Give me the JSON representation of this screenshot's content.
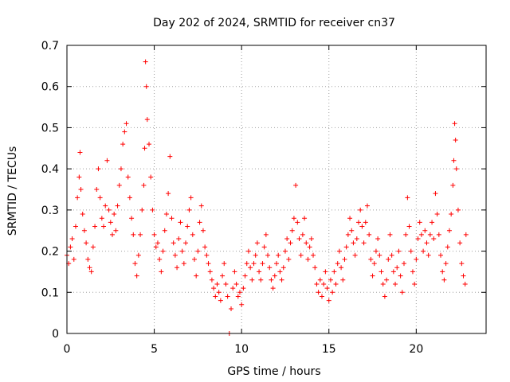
{
  "chart_data": {
    "type": "scatter",
    "title": "Day 202 of 2024, SRMTID for receiver cn37",
    "xlabel": "GPS time / hours",
    "ylabel": "SRMTID / TECUs",
    "xlim": [
      0,
      24
    ],
    "ylim": [
      0,
      0.7
    ],
    "xticks": [
      0,
      5,
      10,
      15,
      20
    ],
    "xtick_labels": [
      "0",
      "5",
      "10",
      "15",
      "20"
    ],
    "yticks": [
      0,
      0.1,
      0.2,
      0.3,
      0.4,
      0.5,
      0.6,
      0.7
    ],
    "ytick_labels": [
      "0",
      "0.1",
      "0.2",
      "0.3",
      "0.4",
      "0.5",
      "0.6",
      "0.7"
    ],
    "grid": true,
    "marker": "+",
    "color": "#ff0000",
    "series": [
      {
        "name": "SRMTID",
        "points": [
          [
            0.0,
            0.19
          ],
          [
            0.1,
            0.17
          ],
          [
            0.2,
            0.21
          ],
          [
            0.3,
            0.23
          ],
          [
            0.4,
            0.18
          ],
          [
            0.5,
            0.26
          ],
          [
            0.6,
            0.33
          ],
          [
            0.7,
            0.38
          ],
          [
            0.75,
            0.44
          ],
          [
            0.8,
            0.35
          ],
          [
            0.9,
            0.29
          ],
          [
            1.0,
            0.25
          ],
          [
            1.1,
            0.22
          ],
          [
            1.2,
            0.18
          ],
          [
            1.3,
            0.16
          ],
          [
            1.4,
            0.15
          ],
          [
            1.5,
            0.21
          ],
          [
            1.6,
            0.26
          ],
          [
            1.7,
            0.35
          ],
          [
            1.8,
            0.4
          ],
          [
            1.9,
            0.33
          ],
          [
            2.0,
            0.28
          ],
          [
            2.1,
            0.26
          ],
          [
            2.2,
            0.31
          ],
          [
            2.3,
            0.42
          ],
          [
            2.4,
            0.3
          ],
          [
            2.5,
            0.27
          ],
          [
            2.6,
            0.24
          ],
          [
            2.7,
            0.29
          ],
          [
            2.8,
            0.25
          ],
          [
            2.9,
            0.31
          ],
          [
            3.0,
            0.36
          ],
          [
            3.1,
            0.4
          ],
          [
            3.2,
            0.46
          ],
          [
            3.3,
            0.49
          ],
          [
            3.4,
            0.51
          ],
          [
            3.5,
            0.38
          ],
          [
            3.6,
            0.33
          ],
          [
            3.7,
            0.28
          ],
          [
            3.8,
            0.24
          ],
          [
            3.9,
            0.17
          ],
          [
            4.0,
            0.14
          ],
          [
            4.1,
            0.19
          ],
          [
            4.2,
            0.24
          ],
          [
            4.3,
            0.3
          ],
          [
            4.4,
            0.36
          ],
          [
            4.45,
            0.45
          ],
          [
            4.5,
            0.66
          ],
          [
            4.55,
            0.6
          ],
          [
            4.6,
            0.52
          ],
          [
            4.7,
            0.46
          ],
          [
            4.8,
            0.38
          ],
          [
            4.9,
            0.3
          ],
          [
            5.0,
            0.24
          ],
          [
            5.1,
            0.21
          ],
          [
            5.2,
            0.22
          ],
          [
            5.3,
            0.18
          ],
          [
            5.4,
            0.15
          ],
          [
            5.5,
            0.2
          ],
          [
            5.6,
            0.25
          ],
          [
            5.7,
            0.29
          ],
          [
            5.8,
            0.34
          ],
          [
            5.9,
            0.43
          ],
          [
            6.0,
            0.28
          ],
          [
            6.1,
            0.22
          ],
          [
            6.2,
            0.19
          ],
          [
            6.3,
            0.16
          ],
          [
            6.4,
            0.23
          ],
          [
            6.5,
            0.27
          ],
          [
            6.6,
            0.2
          ],
          [
            6.7,
            0.17
          ],
          [
            6.8,
            0.22
          ],
          [
            6.9,
            0.26
          ],
          [
            7.0,
            0.3
          ],
          [
            7.1,
            0.33
          ],
          [
            7.2,
            0.24
          ],
          [
            7.3,
            0.18
          ],
          [
            7.4,
            0.14
          ],
          [
            7.5,
            0.2
          ],
          [
            7.6,
            0.27
          ],
          [
            7.7,
            0.31
          ],
          [
            7.8,
            0.25
          ],
          [
            7.9,
            0.21
          ],
          [
            8.0,
            0.19
          ],
          [
            8.1,
            0.17
          ],
          [
            8.2,
            0.15
          ],
          [
            8.3,
            0.13
          ],
          [
            8.4,
            0.11
          ],
          [
            8.5,
            0.09
          ],
          [
            8.6,
            0.12
          ],
          [
            8.7,
            0.1
          ],
          [
            8.8,
            0.08
          ],
          [
            8.9,
            0.14
          ],
          [
            9.0,
            0.17
          ],
          [
            9.1,
            0.12
          ],
          [
            9.2,
            0.09
          ],
          [
            9.3,
            0.0
          ],
          [
            9.4,
            0.06
          ],
          [
            9.5,
            0.11
          ],
          [
            9.6,
            0.15
          ],
          [
            9.7,
            0.12
          ],
          [
            9.8,
            0.09
          ],
          [
            9.9,
            0.1
          ],
          [
            10.0,
            0.07
          ],
          [
            10.1,
            0.11
          ],
          [
            10.2,
            0.14
          ],
          [
            10.3,
            0.17
          ],
          [
            10.4,
            0.2
          ],
          [
            10.5,
            0.16
          ],
          [
            10.6,
            0.13
          ],
          [
            10.7,
            0.17
          ],
          [
            10.8,
            0.19
          ],
          [
            10.9,
            0.22
          ],
          [
            11.0,
            0.15
          ],
          [
            11.1,
            0.13
          ],
          [
            11.2,
            0.17
          ],
          [
            11.3,
            0.21
          ],
          [
            11.4,
            0.24
          ],
          [
            11.5,
            0.19
          ],
          [
            11.6,
            0.16
          ],
          [
            11.7,
            0.13
          ],
          [
            11.8,
            0.11
          ],
          [
            11.9,
            0.14
          ],
          [
            12.0,
            0.17
          ],
          [
            12.1,
            0.19
          ],
          [
            12.2,
            0.15
          ],
          [
            12.3,
            0.13
          ],
          [
            12.4,
            0.16
          ],
          [
            12.5,
            0.2
          ],
          [
            12.6,
            0.23
          ],
          [
            12.7,
            0.18
          ],
          [
            12.8,
            0.22
          ],
          [
            12.9,
            0.25
          ],
          [
            13.0,
            0.28
          ],
          [
            13.1,
            0.36
          ],
          [
            13.2,
            0.27
          ],
          [
            13.3,
            0.23
          ],
          [
            13.4,
            0.19
          ],
          [
            13.5,
            0.24
          ],
          [
            13.6,
            0.28
          ],
          [
            13.7,
            0.22
          ],
          [
            13.8,
            0.18
          ],
          [
            13.9,
            0.21
          ],
          [
            14.0,
            0.23
          ],
          [
            14.1,
            0.19
          ],
          [
            14.2,
            0.16
          ],
          [
            14.3,
            0.12
          ],
          [
            14.4,
            0.1
          ],
          [
            14.5,
            0.13
          ],
          [
            14.6,
            0.09
          ],
          [
            14.7,
            0.12
          ],
          [
            14.8,
            0.15
          ],
          [
            14.9,
            0.11
          ],
          [
            15.0,
            0.08
          ],
          [
            15.1,
            0.13
          ],
          [
            15.2,
            0.1
          ],
          [
            15.3,
            0.15
          ],
          [
            15.4,
            0.12
          ],
          [
            15.5,
            0.17
          ],
          [
            15.6,
            0.2
          ],
          [
            15.7,
            0.16
          ],
          [
            15.8,
            0.13
          ],
          [
            15.9,
            0.18
          ],
          [
            16.0,
            0.21
          ],
          [
            16.1,
            0.24
          ],
          [
            16.2,
            0.28
          ],
          [
            16.3,
            0.25
          ],
          [
            16.4,
            0.22
          ],
          [
            16.5,
            0.19
          ],
          [
            16.6,
            0.23
          ],
          [
            16.7,
            0.27
          ],
          [
            16.8,
            0.3
          ],
          [
            16.9,
            0.26
          ],
          [
            17.0,
            0.22
          ],
          [
            17.1,
            0.27
          ],
          [
            17.2,
            0.31
          ],
          [
            17.3,
            0.24
          ],
          [
            17.4,
            0.18
          ],
          [
            17.5,
            0.14
          ],
          [
            17.6,
            0.17
          ],
          [
            17.7,
            0.2
          ],
          [
            17.8,
            0.23
          ],
          [
            17.9,
            0.19
          ],
          [
            18.0,
            0.15
          ],
          [
            18.1,
            0.12
          ],
          [
            18.2,
            0.09
          ],
          [
            18.3,
            0.13
          ],
          [
            18.4,
            0.18
          ],
          [
            18.5,
            0.24
          ],
          [
            18.6,
            0.19
          ],
          [
            18.7,
            0.15
          ],
          [
            18.8,
            0.12
          ],
          [
            18.9,
            0.16
          ],
          [
            19.0,
            0.2
          ],
          [
            19.1,
            0.14
          ],
          [
            19.2,
            0.1
          ],
          [
            19.3,
            0.17
          ],
          [
            19.4,
            0.24
          ],
          [
            19.5,
            0.33
          ],
          [
            19.6,
            0.26
          ],
          [
            19.7,
            0.2
          ],
          [
            19.8,
            0.15
          ],
          [
            19.9,
            0.12
          ],
          [
            20.0,
            0.18
          ],
          [
            20.1,
            0.23
          ],
          [
            20.2,
            0.27
          ],
          [
            20.3,
            0.24
          ],
          [
            20.4,
            0.2
          ],
          [
            20.5,
            0.25
          ],
          [
            20.6,
            0.22
          ],
          [
            20.7,
            0.19
          ],
          [
            20.8,
            0.24
          ],
          [
            20.9,
            0.27
          ],
          [
            21.0,
            0.23
          ],
          [
            21.1,
            0.34
          ],
          [
            21.2,
            0.29
          ],
          [
            21.3,
            0.24
          ],
          [
            21.4,
            0.19
          ],
          [
            21.5,
            0.15
          ],
          [
            21.6,
            0.13
          ],
          [
            21.7,
            0.17
          ],
          [
            21.8,
            0.21
          ],
          [
            21.9,
            0.25
          ],
          [
            22.0,
            0.29
          ],
          [
            22.1,
            0.36
          ],
          [
            22.15,
            0.42
          ],
          [
            22.2,
            0.51
          ],
          [
            22.25,
            0.47
          ],
          [
            22.3,
            0.4
          ],
          [
            22.4,
            0.3
          ],
          [
            22.5,
            0.22
          ],
          [
            22.6,
            0.17
          ],
          [
            22.7,
            0.14
          ],
          [
            22.8,
            0.12
          ],
          [
            22.85,
            0.24
          ]
        ]
      }
    ]
  }
}
